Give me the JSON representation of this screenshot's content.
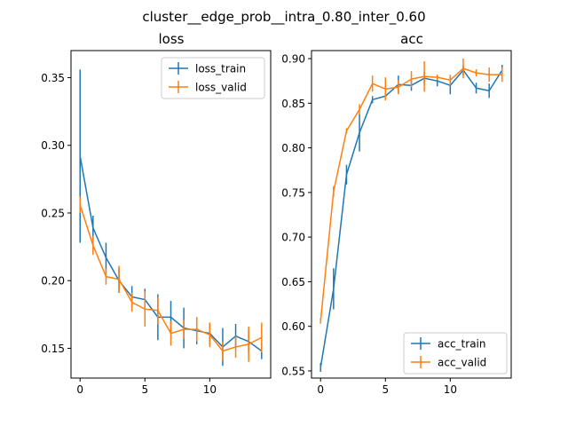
{
  "figure": {
    "title": "cluster__edge_prob__intra_0.80_inter_0.60"
  },
  "chart_data": [
    {
      "type": "line",
      "title": "loss",
      "xlabel": "",
      "ylabel": "",
      "xlim": [
        -0.7,
        14.7
      ],
      "ylim": [
        0.128,
        0.37
      ],
      "xticks": [
        0,
        5,
        10
      ],
      "xtick_labels": [
        "0",
        "5",
        "10"
      ],
      "yticks": [
        0.15,
        0.2,
        0.25,
        0.3,
        0.35
      ],
      "ytick_labels": [
        "0.15",
        "0.20",
        "0.25",
        "0.30",
        "0.35"
      ],
      "grid": false,
      "legend": "top-right",
      "x": [
        0,
        1,
        2,
        3,
        4,
        5,
        6,
        7,
        8,
        9,
        10,
        11,
        12,
        13,
        14
      ],
      "series": [
        {
          "name": "loss_train",
          "color": "#1f77b4",
          "values": [
            0.292,
            0.239,
            0.217,
            0.2,
            0.188,
            0.186,
            0.173,
            0.173,
            0.165,
            0.163,
            0.161,
            0.151,
            0.159,
            0.155,
            0.148
          ],
          "errors": [
            0.064,
            0.009,
            0.011,
            0.009,
            0.008,
            0.008,
            0.017,
            0.012,
            0.015,
            0.01,
            0.008,
            0.014,
            0.009,
            0.008,
            0.006
          ]
        },
        {
          "name": "loss_valid",
          "color": "#ff7f0e",
          "values": [
            0.256,
            0.226,
            0.203,
            0.201,
            0.184,
            0.179,
            0.178,
            0.161,
            0.164,
            0.164,
            0.16,
            0.148,
            0.151,
            0.153,
            0.158
          ],
          "errors": [
            0.006,
            0.007,
            0.006,
            0.01,
            0.007,
            0.013,
            0.01,
            0.009,
            0.007,
            0.009,
            0.009,
            0.007,
            0.008,
            0.013,
            0.011
          ]
        }
      ]
    },
    {
      "type": "line",
      "title": "acc",
      "xlabel": "",
      "ylabel": "",
      "xlim": [
        -0.7,
        14.7
      ],
      "ylim": [
        0.542,
        0.909
      ],
      "xticks": [
        0,
        5,
        10
      ],
      "xtick_labels": [
        "0",
        "5",
        "10"
      ],
      "yticks": [
        0.55,
        0.6,
        0.65,
        0.7,
        0.75,
        0.8,
        0.85,
        0.9
      ],
      "ytick_labels": [
        "0.55",
        "0.60",
        "0.65",
        "0.70",
        "0.75",
        "0.80",
        "0.85",
        "0.90"
      ],
      "grid": false,
      "legend": "bottom-right",
      "x": [
        0,
        1,
        2,
        3,
        4,
        5,
        6,
        7,
        8,
        9,
        10,
        11,
        12,
        13,
        14
      ],
      "series": [
        {
          "name": "acc_train",
          "color": "#1f77b4",
          "values": [
            0.554,
            0.642,
            0.77,
            0.817,
            0.854,
            0.858,
            0.871,
            0.87,
            0.878,
            0.875,
            0.87,
            0.887,
            0.867,
            0.864,
            0.887
          ],
          "errors": [
            0.005,
            0.023,
            0.011,
            0.021,
            0.004,
            0.004,
            0.01,
            0.006,
            0.007,
            0.006,
            0.01,
            0.006,
            0.006,
            0.008,
            0.006
          ]
        },
        {
          "name": "acc_valid",
          "color": "#ff7f0e",
          "values": [
            0.606,
            0.751,
            0.819,
            0.843,
            0.872,
            0.866,
            0.868,
            0.877,
            0.88,
            0.879,
            0.876,
            0.889,
            0.884,
            0.882,
            0.882
          ],
          "errors": [
            0.003,
            0.006,
            0.003,
            0.006,
            0.009,
            0.013,
            0.008,
            0.009,
            0.017,
            0.003,
            0.006,
            0.011,
            0.004,
            0.008,
            0.008
          ]
        }
      ]
    }
  ]
}
